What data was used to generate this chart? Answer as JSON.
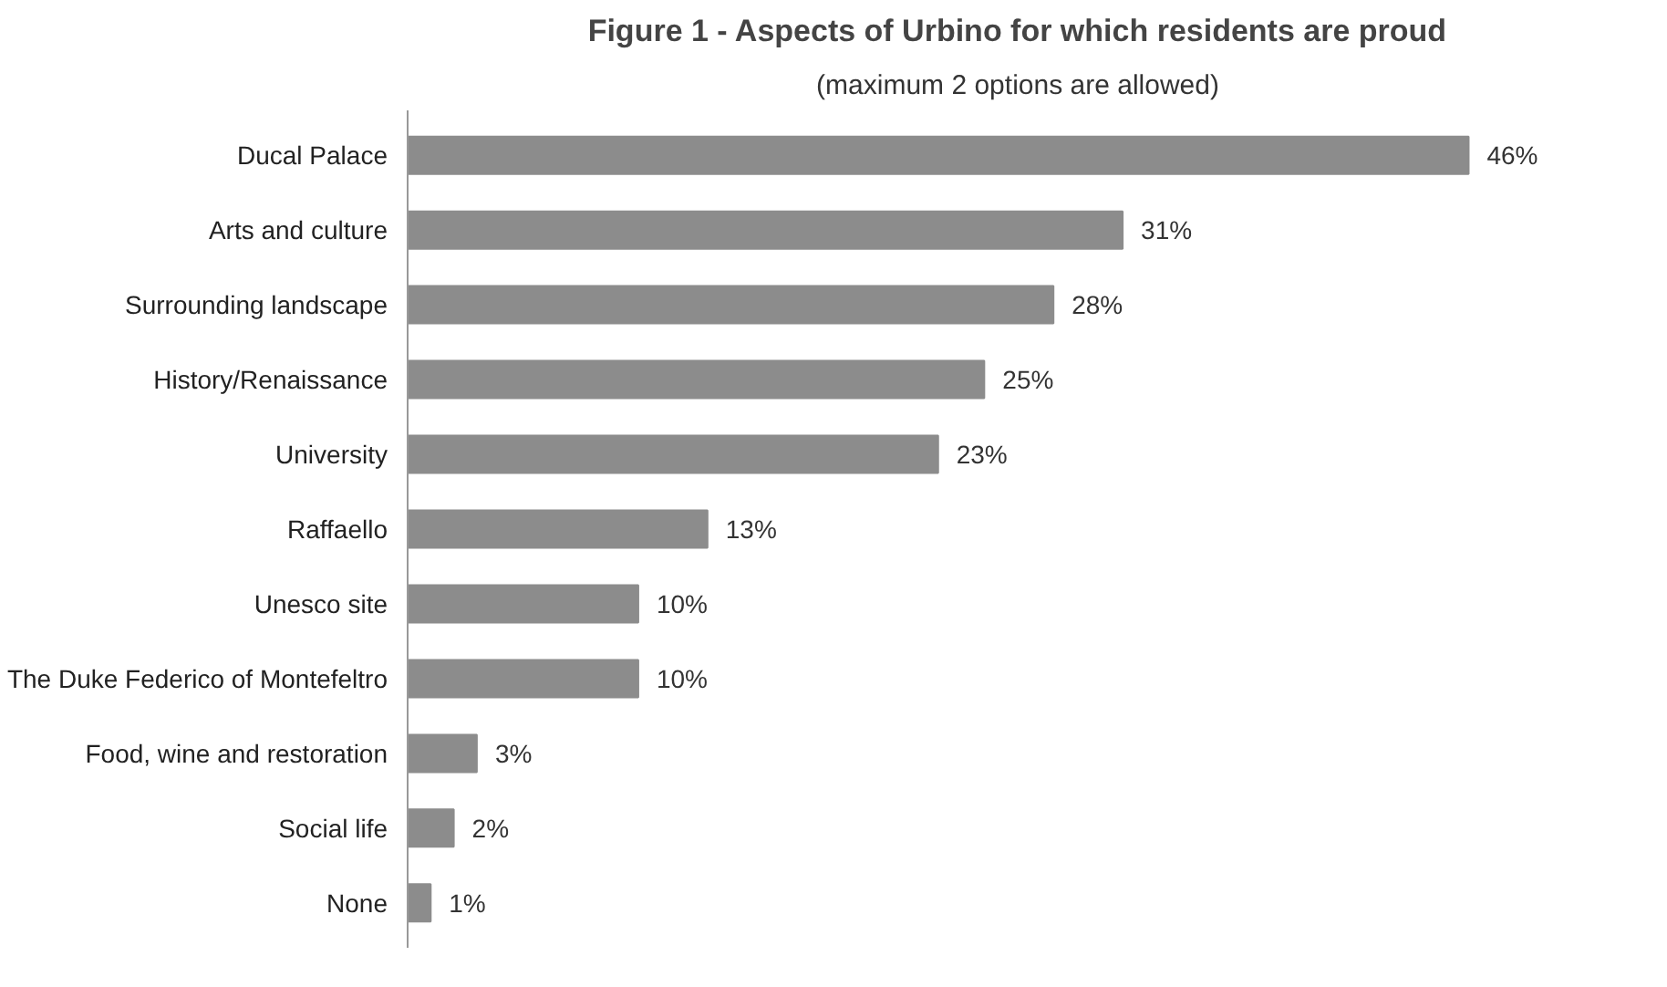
{
  "chart_data": {
    "type": "bar",
    "orientation": "horizontal",
    "title": "Figure 1 - Aspects of Urbino for which residents are proud",
    "subtitle": "(maximum 2 options are allowed)",
    "categories": [
      "Ducal Palace",
      "Arts and culture",
      "Surrounding landscape",
      "History/Renaissance",
      "University",
      "Raffaello",
      "Unesco site",
      "The Duke Federico of Montefeltro",
      "Food, wine and restoration",
      "Social life",
      "None"
    ],
    "values": [
      46,
      31,
      28,
      25,
      23,
      13,
      10,
      10,
      3,
      2,
      1
    ],
    "value_labels": [
      "46%",
      "31%",
      "28%",
      "25%",
      "23%",
      "13%",
      "10%",
      "10%",
      "3%",
      "2%",
      "1%"
    ],
    "color": "#8c8c8c",
    "grid": false
  }
}
